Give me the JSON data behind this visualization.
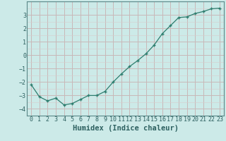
{
  "x": [
    0,
    1,
    2,
    3,
    4,
    5,
    6,
    7,
    8,
    9,
    10,
    11,
    12,
    13,
    14,
    15,
    16,
    17,
    18,
    19,
    20,
    21,
    22,
    23
  ],
  "y": [
    -2.2,
    -3.1,
    -3.4,
    -3.2,
    -3.7,
    -3.6,
    -3.3,
    -3.0,
    -3.0,
    -2.7,
    -2.0,
    -1.4,
    -0.85,
    -0.4,
    0.1,
    0.75,
    1.6,
    2.2,
    2.8,
    2.85,
    3.1,
    3.25,
    3.45,
    3.5
  ],
  "xlabel": "Humidex (Indice chaleur)",
  "ylim": [
    -4.5,
    4.0
  ],
  "xlim": [
    -0.5,
    23.5
  ],
  "yticks": [
    -4,
    -3,
    -2,
    -1,
    0,
    1,
    2,
    3
  ],
  "xticks": [
    0,
    1,
    2,
    3,
    4,
    5,
    6,
    7,
    8,
    9,
    10,
    11,
    12,
    13,
    14,
    15,
    16,
    17,
    18,
    19,
    20,
    21,
    22,
    23
  ],
  "line_color": "#2d7d6e",
  "marker_color": "#2d7d6e",
  "bg_color": "#cceae8",
  "grid_major_color": "#b8d4d0",
  "grid_minor_color": "#d4ecec",
  "xlabel_fontsize": 7.5,
  "tick_fontsize": 6.0,
  "tick_color": "#2d6060"
}
